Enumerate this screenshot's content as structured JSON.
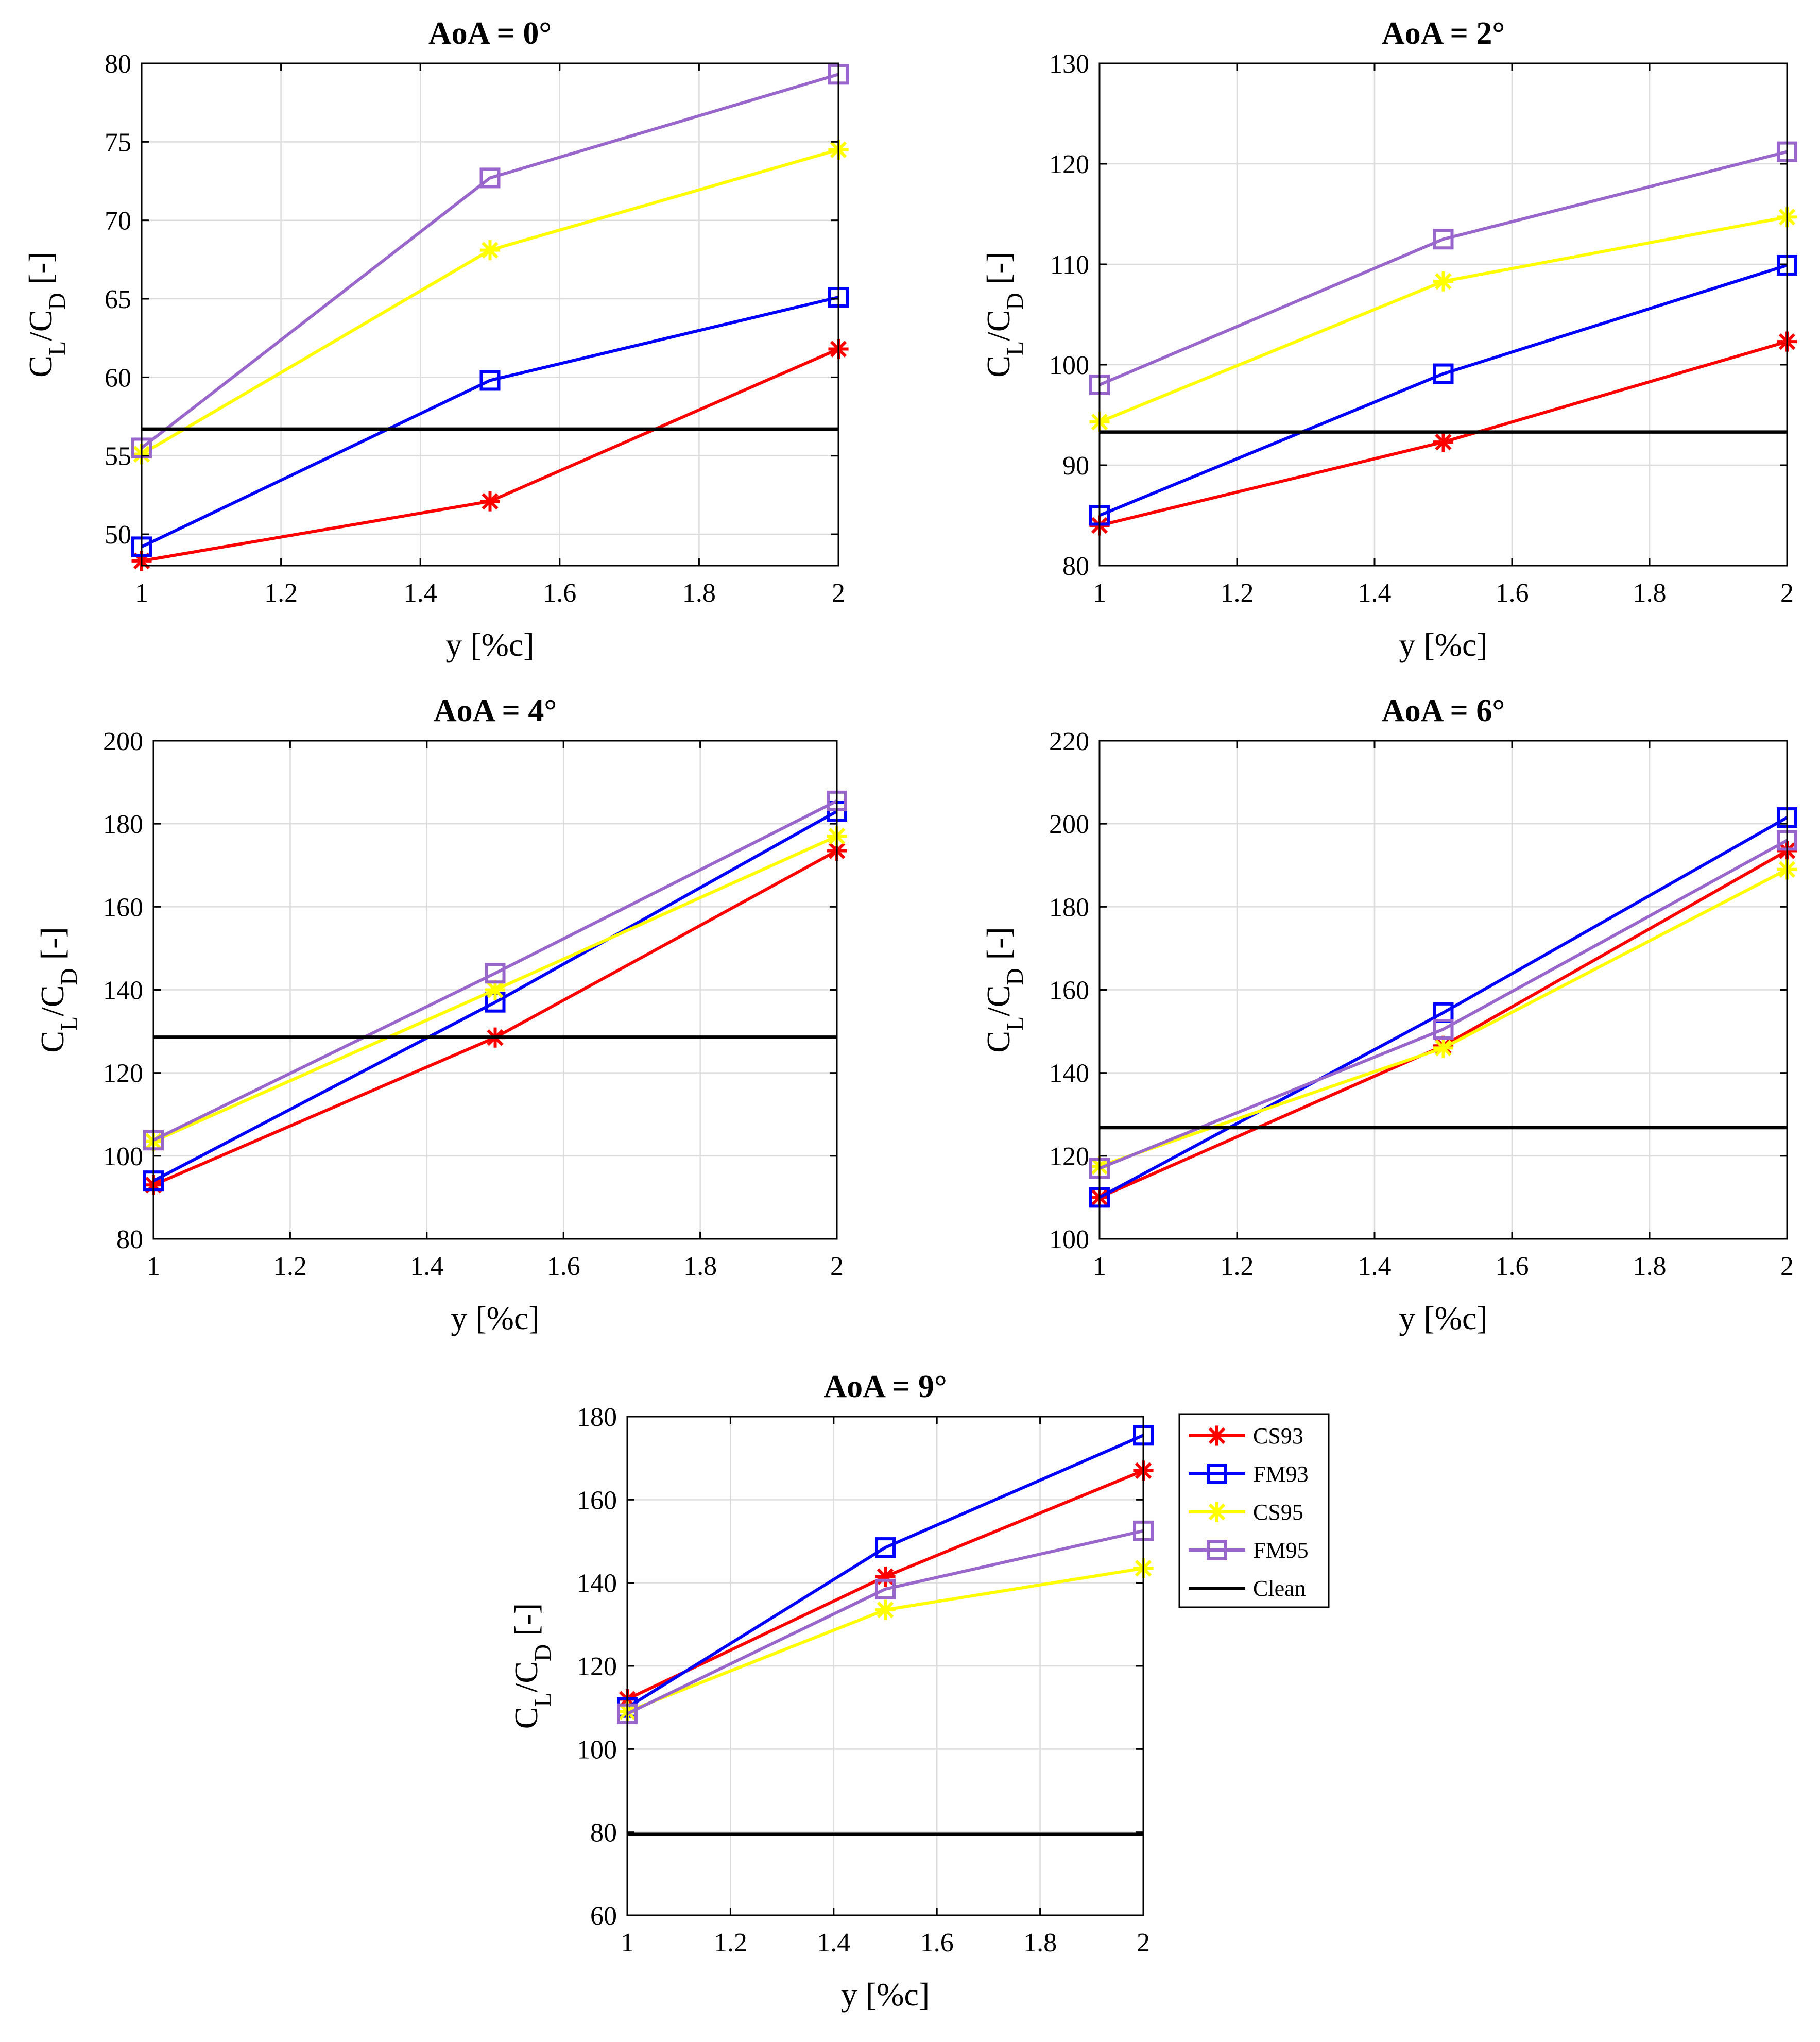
{
  "legend": {
    "items": [
      {
        "key": "CS93",
        "label": "CS93"
      },
      {
        "key": "FM93",
        "label": "FM93"
      },
      {
        "key": "CS95",
        "label": "CS95"
      },
      {
        "key": "FM95",
        "label": "FM95"
      },
      {
        "key": "Clean",
        "label": "Clean"
      }
    ]
  },
  "styles": {
    "CS93": {
      "color": "#ff0000",
      "marker": "asterisk"
    },
    "FM93": {
      "color": "#0000ff",
      "marker": "square"
    },
    "CS95": {
      "color": "#ffff00",
      "marker": "asterisk"
    },
    "FM95": {
      "color": "#9966cc",
      "marker": "square"
    },
    "Clean": {
      "color": "#000000",
      "marker": "none"
    }
  },
  "chart_data": [
    {
      "type": "line",
      "title": "AoA = 0°",
      "xlabel": "y [%c]",
      "ylabel": {
        "main": "C",
        "sub1": "L",
        "mid": "/C",
        "sub2": "D",
        "tail": " [-]"
      },
      "x": [
        1,
        1.5,
        2
      ],
      "xlim": [
        1,
        2
      ],
      "xticks": [
        1,
        1.2,
        1.4,
        1.6,
        1.8,
        2
      ],
      "xtick_labels": [
        "1",
        "1.2",
        "1.4",
        "1.6",
        "1.8",
        "2"
      ],
      "ylim": [
        48,
        80
      ],
      "yticks": [
        50,
        55,
        60,
        65,
        70,
        75,
        80
      ],
      "ytick_labels": [
        "50",
        "55",
        "60",
        "65",
        "70",
        "75",
        "80"
      ],
      "series": [
        {
          "name": "CS93",
          "values": [
            48.3,
            52.1,
            61.8
          ]
        },
        {
          "name": "FM93",
          "values": [
            49.2,
            59.8,
            65.1
          ]
        },
        {
          "name": "CS95",
          "values": [
            55.1,
            68.1,
            74.5
          ]
        },
        {
          "name": "FM95",
          "values": [
            55.5,
            72.7,
            79.3
          ]
        },
        {
          "name": "Clean",
          "values": [
            56.7,
            56.7,
            56.7
          ]
        }
      ]
    },
    {
      "type": "line",
      "title": "AoA = 2°",
      "xlabel": "y [%c]",
      "ylabel": {
        "main": "C",
        "sub1": "L",
        "mid": "/C",
        "sub2": "D",
        "tail": " [-]"
      },
      "x": [
        1,
        1.5,
        2
      ],
      "xlim": [
        1,
        2
      ],
      "xticks": [
        1,
        1.2,
        1.4,
        1.6,
        1.8,
        2
      ],
      "xtick_labels": [
        "1",
        "1.2",
        "1.4",
        "1.6",
        "1.8",
        "2"
      ],
      "ylim": [
        80,
        130
      ],
      "yticks": [
        80,
        90,
        100,
        110,
        120,
        130
      ],
      "ytick_labels": [
        "80",
        "90",
        "100",
        "110",
        "120",
        "130"
      ],
      "series": [
        {
          "name": "CS93",
          "values": [
            84,
            92.3,
            102.3
          ]
        },
        {
          "name": "FM93",
          "values": [
            85,
            99.1,
            109.9
          ]
        },
        {
          "name": "CS95",
          "values": [
            94.3,
            108.3,
            114.7
          ]
        },
        {
          "name": "FM95",
          "values": [
            98,
            112.5,
            121.2
          ]
        },
        {
          "name": "Clean",
          "values": [
            93.3,
            93.3,
            93.3
          ]
        }
      ]
    },
    {
      "type": "line",
      "title": "AoA = 4°",
      "xlabel": "y [%c]",
      "ylabel": {
        "main": "C",
        "sub1": "L",
        "mid": "/C",
        "sub2": "D",
        "tail": " [-]"
      },
      "x": [
        1,
        1.5,
        2
      ],
      "xlim": [
        1,
        2
      ],
      "xticks": [
        1,
        1.2,
        1.4,
        1.6,
        1.8,
        2
      ],
      "xtick_labels": [
        "1",
        "1.2",
        "1.4",
        "1.6",
        "1.8",
        "2"
      ],
      "ylim": [
        80,
        200
      ],
      "yticks": [
        80,
        100,
        120,
        140,
        160,
        180,
        200
      ],
      "ytick_labels": [
        "80",
        "100",
        "120",
        "140",
        "160",
        "180",
        "200"
      ],
      "series": [
        {
          "name": "CS93",
          "values": [
            93,
            128.5,
            173.5
          ]
        },
        {
          "name": "FM93",
          "values": [
            94,
            137,
            183
          ]
        },
        {
          "name": "CS95",
          "values": [
            103.5,
            140,
            177
          ]
        },
        {
          "name": "FM95",
          "values": [
            103.8,
            144,
            185.5
          ]
        },
        {
          "name": "Clean",
          "values": [
            128.6,
            128.6,
            128.6
          ]
        }
      ]
    },
    {
      "type": "line",
      "title": "AoA = 6°",
      "xlabel": "y [%c]",
      "ylabel": {
        "main": "C",
        "sub1": "L",
        "mid": "/C",
        "sub2": "D",
        "tail": " [-]"
      },
      "x": [
        1,
        1.5,
        2
      ],
      "xlim": [
        1,
        2
      ],
      "xticks": [
        1,
        1.2,
        1.4,
        1.6,
        1.8,
        2
      ],
      "xtick_labels": [
        "1",
        "1.2",
        "1.4",
        "1.6",
        "1.8",
        "2"
      ],
      "ylim": [
        100,
        220
      ],
      "yticks": [
        100,
        120,
        140,
        160,
        180,
        200,
        220
      ],
      "ytick_labels": [
        "100",
        "120",
        "140",
        "160",
        "180",
        "200",
        "220"
      ],
      "series": [
        {
          "name": "CS93",
          "values": [
            110,
            146.5,
            193.5
          ]
        },
        {
          "name": "FM93",
          "values": [
            110,
            154.5,
            201.5
          ]
        },
        {
          "name": "CS95",
          "values": [
            117.5,
            146,
            189
          ]
        },
        {
          "name": "FM95",
          "values": [
            117,
            150.5,
            196
          ]
        },
        {
          "name": "Clean",
          "values": [
            126.8,
            126.8,
            126.8
          ]
        }
      ]
    },
    {
      "type": "line",
      "title": "AoA = 9°",
      "xlabel": "y [%c]",
      "ylabel": {
        "main": "C",
        "sub1": "L",
        "mid": "/C",
        "sub2": "D",
        "tail": " [-]"
      },
      "x": [
        1,
        1.5,
        2
      ],
      "xlim": [
        1,
        2
      ],
      "xticks": [
        1,
        1.2,
        1.4,
        1.6,
        1.8,
        2
      ],
      "xtick_labels": [
        "1",
        "1.2",
        "1.4",
        "1.6",
        "1.8",
        "2"
      ],
      "ylim": [
        60,
        180
      ],
      "yticks": [
        60,
        80,
        100,
        120,
        140,
        160,
        180
      ],
      "ytick_labels": [
        "60",
        "80",
        "100",
        "120",
        "140",
        "160",
        "180"
      ],
      "series": [
        {
          "name": "CS93",
          "values": [
            112,
            141.5,
            167
          ]
        },
        {
          "name": "FM93",
          "values": [
            110,
            148.5,
            175.5
          ]
        },
        {
          "name": "CS95",
          "values": [
            109,
            133.5,
            143.5
          ]
        },
        {
          "name": "FM95",
          "values": [
            108.5,
            138.5,
            152.5
          ]
        },
        {
          "name": "Clean",
          "values": [
            79.5,
            79.5,
            79.5
          ]
        }
      ]
    }
  ]
}
